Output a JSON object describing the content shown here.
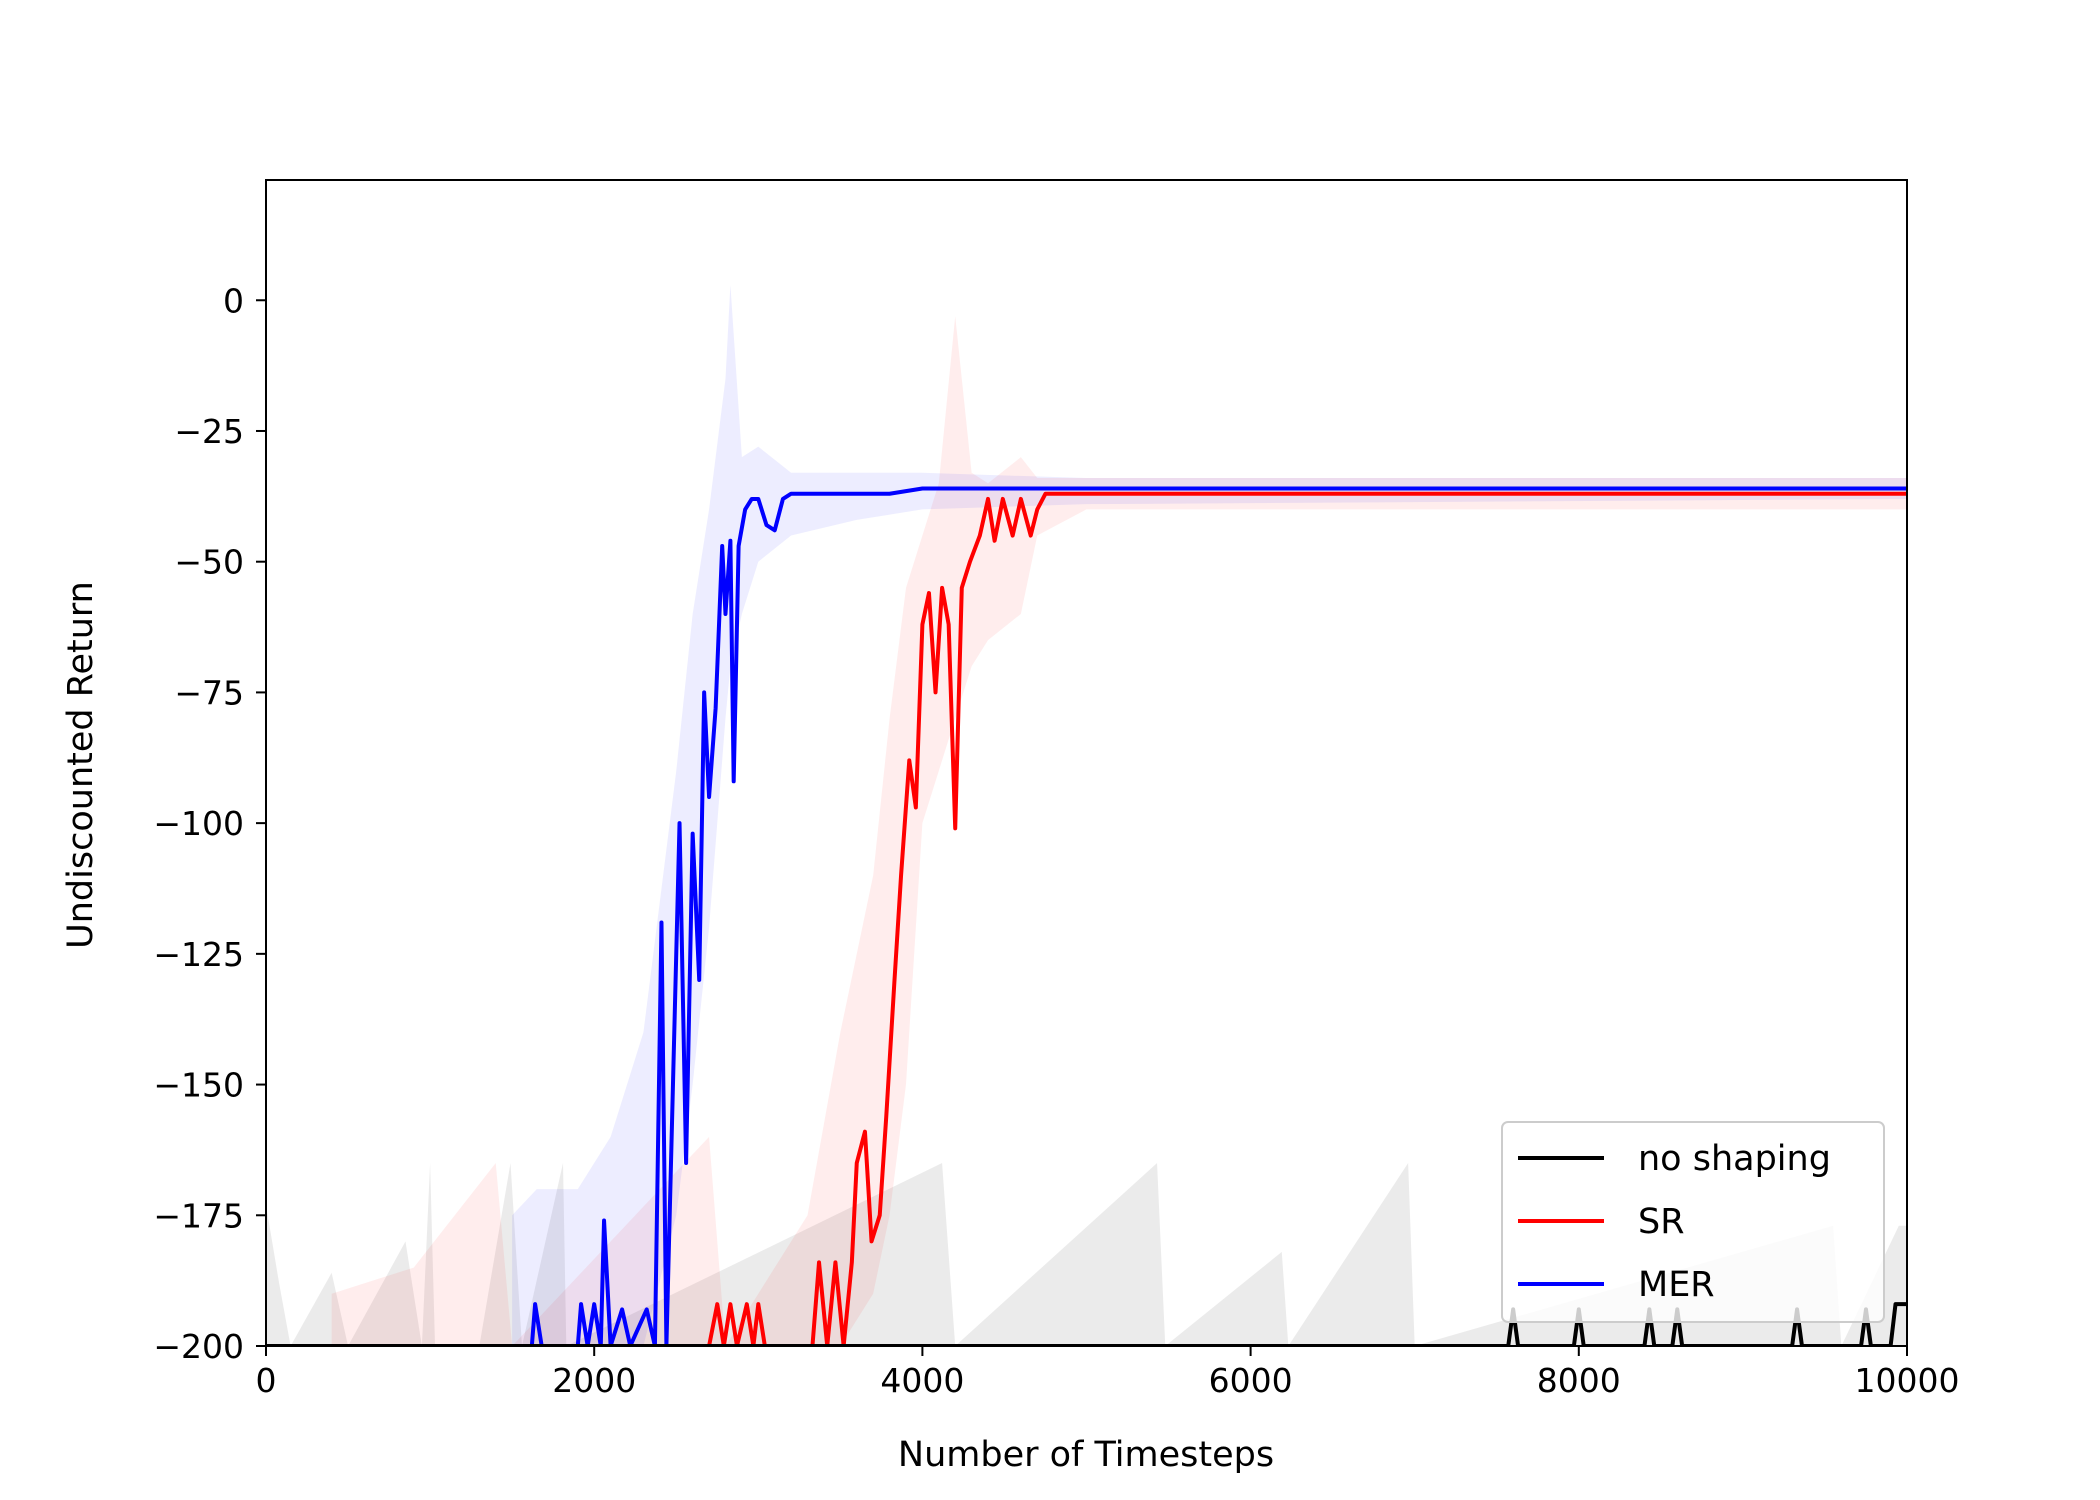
{
  "chart_data": {
    "type": "line",
    "title": "",
    "xlabel": "Number of Timesteps",
    "ylabel": "Undiscounted Return",
    "xlim": [
      0,
      10000
    ],
    "ylim": [
      -200,
      23
    ],
    "x_ticks": [
      0,
      2000,
      4000,
      6000,
      8000,
      10000
    ],
    "y_ticks": [
      0,
      -25,
      -50,
      -75,
      -100,
      -125,
      -150,
      -175,
      -200
    ],
    "grid": false,
    "legend_position": "bottom-right",
    "series": [
      {
        "name": "no shaping",
        "color": "#000000",
        "points": [
          [
            0,
            -200
          ],
          [
            7570,
            -200
          ],
          [
            7600,
            -193
          ],
          [
            7630,
            -200
          ],
          [
            7970,
            -200
          ],
          [
            8000,
            -193
          ],
          [
            8030,
            -200
          ],
          [
            8400,
            -200
          ],
          [
            8430,
            -193
          ],
          [
            8460,
            -200
          ],
          [
            8570,
            -200
          ],
          [
            8600,
            -193
          ],
          [
            8630,
            -200
          ],
          [
            9300,
            -200
          ],
          [
            9330,
            -193
          ],
          [
            9360,
            -200
          ],
          [
            9720,
            -200
          ],
          [
            9750,
            -193
          ],
          [
            9780,
            -200
          ],
          [
            9900,
            -200
          ],
          [
            9930,
            -192
          ],
          [
            10000,
            -192
          ]
        ],
        "band": [
          [
            0,
            -200,
            -173
          ],
          [
            80,
            -200,
            -188
          ],
          [
            150,
            -200,
            -200
          ],
          [
            400,
            -200,
            -186
          ],
          [
            500,
            -200,
            -200
          ],
          [
            850,
            -200,
            -180
          ],
          [
            950,
            -200,
            -200
          ],
          [
            1000,
            -200,
            -165
          ],
          [
            1030,
            -200,
            -200
          ],
          [
            1300,
            -200,
            -200
          ],
          [
            1490,
            -200,
            -165
          ],
          [
            1560,
            -200,
            -200
          ],
          [
            1810,
            -200,
            -165
          ],
          [
            1830,
            -200,
            -200
          ],
          [
            4120,
            -200,
            -165
          ],
          [
            4200,
            -200,
            -200
          ],
          [
            5430,
            -200,
            -165
          ],
          [
            5480,
            -200,
            -200
          ],
          [
            6190,
            -200,
            -182
          ],
          [
            6230,
            -200,
            -200
          ],
          [
            6960,
            -200,
            -165
          ],
          [
            7000,
            -200,
            -200
          ],
          [
            9550,
            -200,
            -177
          ],
          [
            9600,
            -200,
            -200
          ],
          [
            9950,
            -200,
            -177
          ],
          [
            10000,
            -200,
            -177
          ]
        ]
      },
      {
        "name": "SR",
        "color": "#ff0000",
        "points": [
          [
            0,
            -200
          ],
          [
            2700,
            -200
          ],
          [
            2750,
            -192
          ],
          [
            2790,
            -200
          ],
          [
            2830,
            -192
          ],
          [
            2870,
            -200
          ],
          [
            2930,
            -192
          ],
          [
            2970,
            -200
          ],
          [
            3000,
            -192
          ],
          [
            3040,
            -200
          ],
          [
            3330,
            -200
          ],
          [
            3370,
            -184
          ],
          [
            3420,
            -200
          ],
          [
            3470,
            -184
          ],
          [
            3520,
            -200
          ],
          [
            3570,
            -184
          ],
          [
            3600,
            -165
          ],
          [
            3650,
            -159
          ],
          [
            3690,
            -180
          ],
          [
            3740,
            -175
          ],
          [
            3780,
            -156
          ],
          [
            3830,
            -130
          ],
          [
            3870,
            -110
          ],
          [
            3920,
            -88
          ],
          [
            3960,
            -97
          ],
          [
            4000,
            -62
          ],
          [
            4040,
            -56
          ],
          [
            4080,
            -75
          ],
          [
            4120,
            -55
          ],
          [
            4160,
            -62
          ],
          [
            4200,
            -101
          ],
          [
            4240,
            -55
          ],
          [
            4290,
            -50
          ],
          [
            4350,
            -45
          ],
          [
            4400,
            -38
          ],
          [
            4440,
            -46
          ],
          [
            4490,
            -38
          ],
          [
            4550,
            -45
          ],
          [
            4600,
            -38
          ],
          [
            4660,
            -45
          ],
          [
            4700,
            -40
          ],
          [
            4750,
            -37
          ],
          [
            5000,
            -37
          ],
          [
            5500,
            -37
          ],
          [
            6000,
            -37
          ],
          [
            6500,
            -37
          ],
          [
            7000,
            -37
          ],
          [
            7500,
            -37
          ],
          [
            8000,
            -37
          ],
          [
            8500,
            -37
          ],
          [
            9000,
            -37
          ],
          [
            9500,
            -37
          ],
          [
            10000,
            -37
          ]
        ],
        "band": [
          [
            400,
            -200,
            -190
          ],
          [
            900,
            -200,
            -185
          ],
          [
            1400,
            -200,
            -165
          ],
          [
            1500,
            -200,
            -200
          ],
          [
            2700,
            -200,
            -160
          ],
          [
            2800,
            -200,
            -200
          ],
          [
            3300,
            -200,
            -175
          ],
          [
            3500,
            -200,
            -140
          ],
          [
            3700,
            -190,
            -110
          ],
          [
            3800,
            -175,
            -80
          ],
          [
            3900,
            -150,
            -55
          ],
          [
            4000,
            -100,
            -45
          ],
          [
            4100,
            -90,
            -35
          ],
          [
            4200,
            -80,
            -3
          ],
          [
            4300,
            -70,
            -33
          ],
          [
            4400,
            -65,
            -35
          ],
          [
            4600,
            -60,
            -30
          ],
          [
            4700,
            -45,
            -34
          ],
          [
            5000,
            -40,
            -34
          ],
          [
            10000,
            -40,
            -34
          ]
        ]
      },
      {
        "name": "MER",
        "color": "#0000ff",
        "points": [
          [
            0,
            -200
          ],
          [
            1620,
            -200
          ],
          [
            1640,
            -192
          ],
          [
            1680,
            -200
          ],
          [
            1900,
            -200
          ],
          [
            1920,
            -192
          ],
          [
            1960,
            -200
          ],
          [
            2000,
            -192
          ],
          [
            2040,
            -200
          ],
          [
            2060,
            -176
          ],
          [
            2100,
            -200
          ],
          [
            2170,
            -193
          ],
          [
            2220,
            -200
          ],
          [
            2320,
            -193
          ],
          [
            2370,
            -200
          ],
          [
            2410,
            -119
          ],
          [
            2440,
            -200
          ],
          [
            2480,
            -150
          ],
          [
            2520,
            -100
          ],
          [
            2560,
            -165
          ],
          [
            2600,
            -102
          ],
          [
            2640,
            -130
          ],
          [
            2670,
            -75
          ],
          [
            2700,
            -95
          ],
          [
            2740,
            -78
          ],
          [
            2780,
            -47
          ],
          [
            2800,
            -60
          ],
          [
            2830,
            -46
          ],
          [
            2850,
            -92
          ],
          [
            2880,
            -47
          ],
          [
            2920,
            -40
          ],
          [
            2960,
            -38
          ],
          [
            3000,
            -38
          ],
          [
            3050,
            -43
          ],
          [
            3100,
            -44
          ],
          [
            3150,
            -38
          ],
          [
            3200,
            -37
          ],
          [
            3400,
            -37
          ],
          [
            3600,
            -37
          ],
          [
            3800,
            -37
          ],
          [
            4000,
            -36
          ],
          [
            4500,
            -36
          ],
          [
            5000,
            -36
          ],
          [
            5500,
            -36
          ],
          [
            6000,
            -36
          ],
          [
            7000,
            -36
          ],
          [
            8000,
            -36
          ],
          [
            9000,
            -36
          ],
          [
            10000,
            -36
          ]
        ],
        "band": [
          [
            1500,
            -200,
            -175
          ],
          [
            1650,
            -200,
            -170
          ],
          [
            1900,
            -200,
            -170
          ],
          [
            2100,
            -200,
            -160
          ],
          [
            2300,
            -200,
            -140
          ],
          [
            2500,
            -175,
            -90
          ],
          [
            2600,
            -150,
            -60
          ],
          [
            2700,
            -120,
            -40
          ],
          [
            2800,
            -80,
            -15
          ],
          [
            2830,
            -70,
            3
          ],
          [
            2900,
            -60,
            -30
          ],
          [
            3000,
            -50,
            -28
          ],
          [
            3200,
            -45,
            -33
          ],
          [
            3600,
            -42,
            -33
          ],
          [
            4000,
            -40,
            -33
          ],
          [
            5000,
            -39,
            -34
          ],
          [
            10000,
            -38,
            -34
          ]
        ]
      }
    ]
  }
}
